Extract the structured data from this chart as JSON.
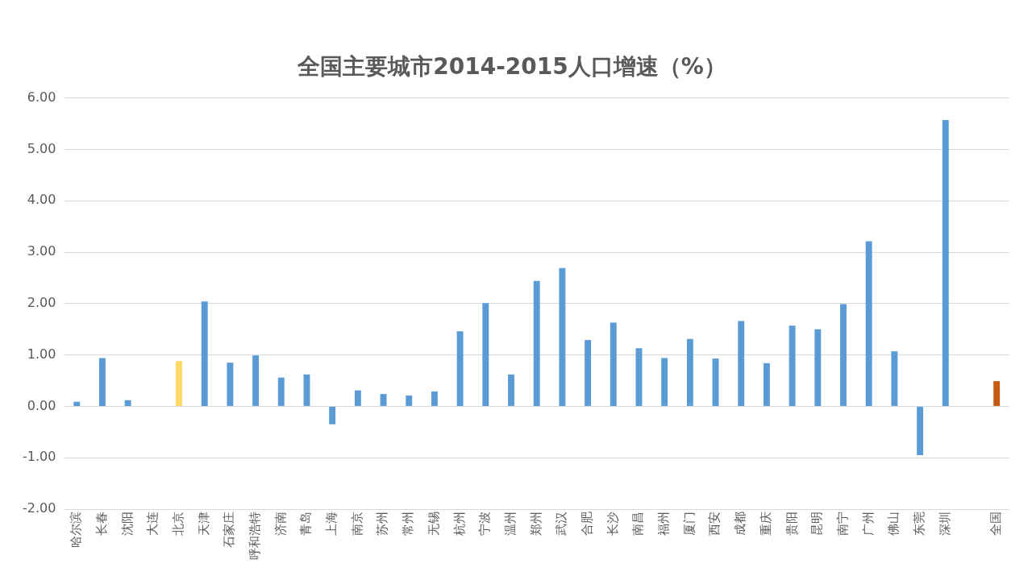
{
  "chart_data": {
    "type": "bar",
    "title": "全国主要城市2014-2015人口增速（%）",
    "categories": [
      "哈尔滨",
      "长春",
      "沈阳",
      "大连",
      "北京",
      "天津",
      "石家庄",
      "呼和浩特",
      "济南",
      "青岛",
      "上海",
      "南京",
      "苏州",
      "常州",
      "无锡",
      "杭州",
      "宁波",
      "温州",
      "郑州",
      "武汉",
      "合肥",
      "长沙",
      "南昌",
      "福州",
      "厦门",
      "西安",
      "成都",
      "重庆",
      "贵阳",
      "昆明",
      "南宁",
      "广州",
      "佛山",
      "东莞",
      "深圳",
      null,
      "全国"
    ],
    "values": [
      0.09,
      0.94,
      0.12,
      0,
      0.88,
      2.04,
      0.85,
      0.99,
      0.56,
      0.62,
      -0.35,
      0.31,
      0.24,
      0.21,
      0.29,
      1.46,
      2.01,
      0.62,
      2.44,
      2.69,
      1.29,
      1.63,
      1.13,
      0.94,
      1.31,
      0.93,
      1.66,
      0.84,
      1.57,
      1.5,
      1.99,
      3.21,
      1.07,
      -0.95,
      5.57,
      null,
      0.49
    ],
    "colors": [
      "#5b9bd5",
      "#5b9bd5",
      "#5b9bd5",
      "#5b9bd5",
      "#ffd966",
      "#5b9bd5",
      "#5b9bd5",
      "#5b9bd5",
      "#5b9bd5",
      "#5b9bd5",
      "#5b9bd5",
      "#5b9bd5",
      "#5b9bd5",
      "#5b9bd5",
      "#5b9bd5",
      "#5b9bd5",
      "#5b9bd5",
      "#5b9bd5",
      "#5b9bd5",
      "#5b9bd5",
      "#5b9bd5",
      "#5b9bd5",
      "#5b9bd5",
      "#5b9bd5",
      "#5b9bd5",
      "#5b9bd5",
      "#5b9bd5",
      "#5b9bd5",
      "#5b9bd5",
      "#5b9bd5",
      "#5b9bd5",
      "#5b9bd5",
      "#5b9bd5",
      "#5b9bd5",
      "#5b9bd5",
      "#5b9bd5",
      "#c55a11"
    ],
    "ylim": [
      -2,
      6
    ],
    "yticks": [
      {
        "value": -2,
        "label": "-2.00"
      },
      {
        "value": -1,
        "label": "-1.00"
      },
      {
        "value": 0,
        "label": "0.00"
      },
      {
        "value": 1,
        "label": "1.00"
      },
      {
        "value": 2,
        "label": "2.00"
      },
      {
        "value": 3,
        "label": "3.00"
      },
      {
        "value": 4,
        "label": "4.00"
      },
      {
        "value": 5,
        "label": "5.00"
      },
      {
        "value": 6,
        "label": "6.00"
      }
    ],
    "grid": "y",
    "legend": false
  }
}
